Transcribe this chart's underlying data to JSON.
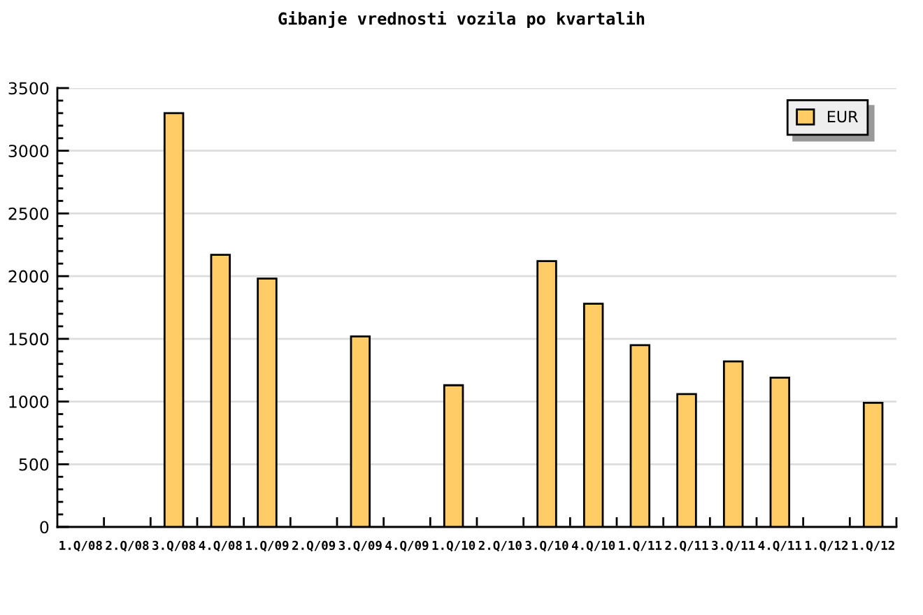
{
  "chart_data": {
    "type": "bar",
    "title": "Gibanje vrednosti vozila po kvartalih",
    "categories": [
      "1.Q/08",
      "2.Q/08",
      "3.Q/08",
      "4.Q/08",
      "1.Q/09",
      "2.Q/09",
      "3.Q/09",
      "4.Q/09",
      "1.Q/10",
      "2.Q/10",
      "3.Q/10",
      "4.Q/10",
      "1.Q/11",
      "2.Q/11",
      "3.Q/11",
      "4.Q/11",
      "1.Q/12",
      "1.Q/12"
    ],
    "series": [
      {
        "name": "EUR",
        "color": "#ffcc66",
        "values": [
          null,
          null,
          3300,
          2170,
          1980,
          null,
          1520,
          null,
          1130,
          null,
          2120,
          1780,
          1450,
          1060,
          1320,
          1190,
          null,
          990
        ]
      }
    ],
    "ylim": [
      0,
      3500
    ],
    "yticks": [
      0,
      500,
      1000,
      1500,
      2000,
      2500,
      3000,
      3500
    ],
    "grid": "y",
    "legend": "top right"
  }
}
